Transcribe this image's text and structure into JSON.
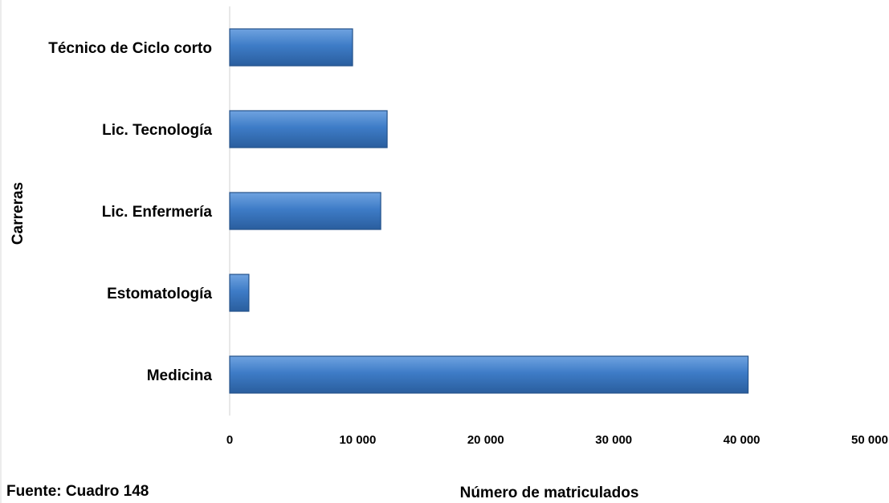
{
  "chart_data": {
    "type": "bar",
    "orientation": "horizontal",
    "categories": [
      "Técnico de Ciclo corto",
      "Lic. Tecnología",
      "Lic. Enfermería",
      "Estomatología",
      "Medicina"
    ],
    "values": [
      9600,
      12300,
      11800,
      1500,
      40500
    ],
    "xlabel": "Número de matriculados",
    "ylabel": "Carreras",
    "xlim": [
      0,
      50000
    ],
    "xticks": [
      "0",
      "10 000",
      "20 000",
      "30 000",
      "40 000",
      "50 000"
    ],
    "grid": false,
    "bar_color": "#3E7CC7",
    "source": "Fuente: Cuadro 148"
  }
}
